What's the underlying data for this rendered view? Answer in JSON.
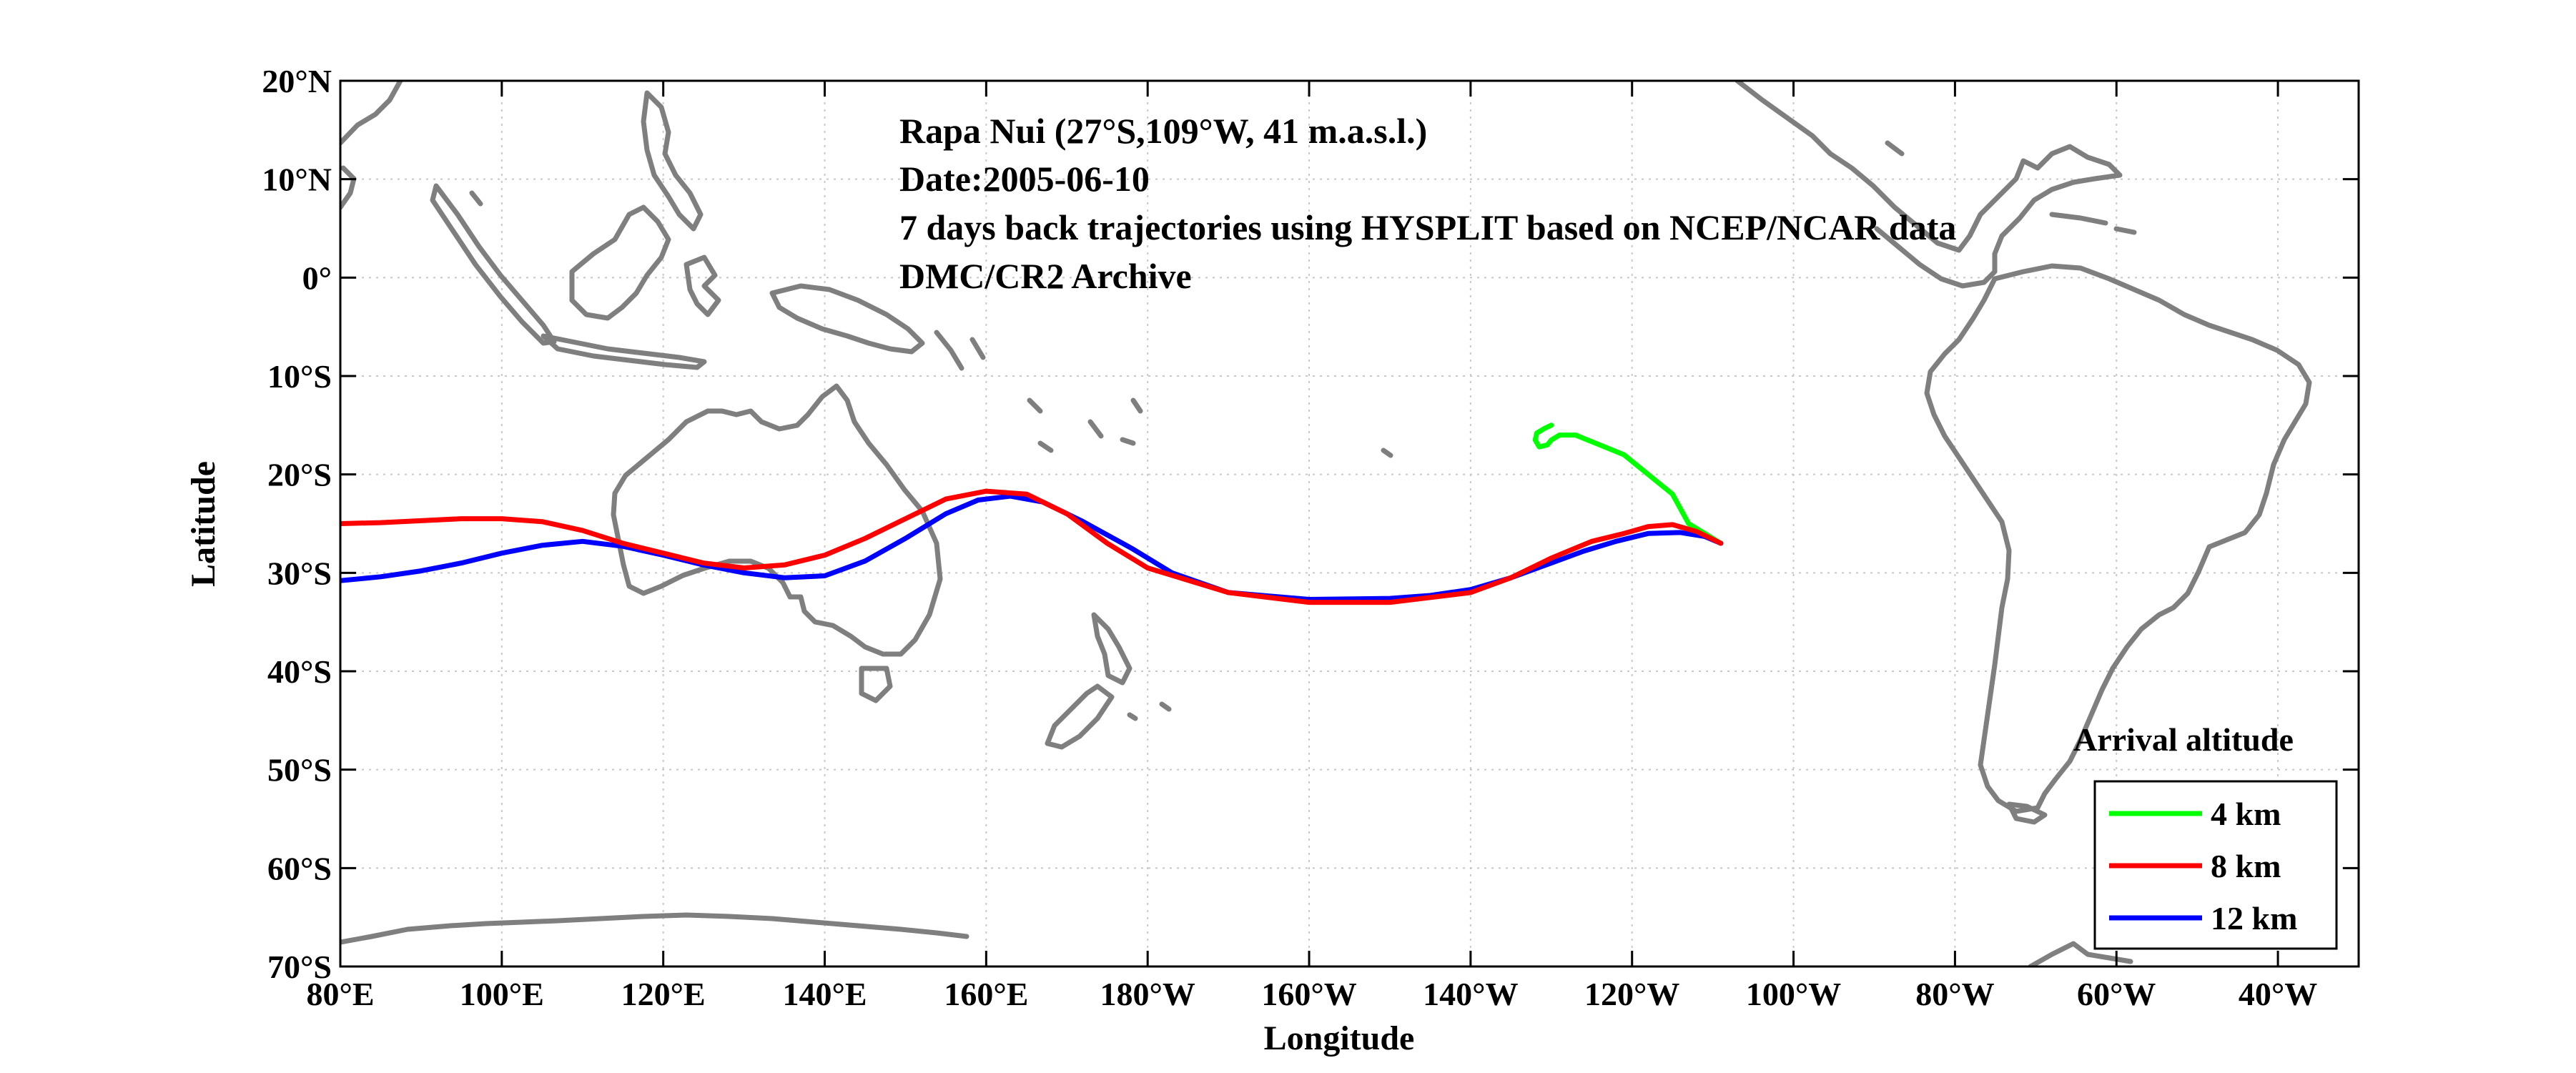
{
  "chart_data": {
    "type": "line",
    "title": "",
    "xlabel": "Longitude",
    "ylabel": "Latitude",
    "xlim": [
      80,
      330
    ],
    "ylim": [
      -70,
      20
    ],
    "grid": true,
    "legend_position": "bottom-right",
    "legend_title": "Arrival altitude",
    "annotations": [
      "Rapa Nui (27°S,109°W, 41 m.a.s.l.)",
      "Date:2005-06-10",
      "7 days back trajectories using HYSPLIT based on NCEP/NCAR data",
      "DMC/CR2 Archive"
    ],
    "x_ticks": [
      {
        "value": 80,
        "label": "80°E"
      },
      {
        "value": 100,
        "label": "100°E"
      },
      {
        "value": 120,
        "label": "120°E"
      },
      {
        "value": 140,
        "label": "140°E"
      },
      {
        "value": 160,
        "label": "160°E"
      },
      {
        "value": 180,
        "label": "180°W"
      },
      {
        "value": 200,
        "label": "160°W"
      },
      {
        "value": 220,
        "label": "140°W"
      },
      {
        "value": 240,
        "label": "120°W"
      },
      {
        "value": 260,
        "label": "100°W"
      },
      {
        "value": 280,
        "label": "80°W"
      },
      {
        "value": 300,
        "label": "60°W"
      },
      {
        "value": 320,
        "label": "40°W"
      }
    ],
    "y_ticks": [
      {
        "value": 20,
        "label": "20°N"
      },
      {
        "value": 10,
        "label": "10°N"
      },
      {
        "value": 0,
        "label": "0°"
      },
      {
        "value": -10,
        "label": "10°S"
      },
      {
        "value": -20,
        "label": "20°S"
      },
      {
        "value": -30,
        "label": "30°S"
      },
      {
        "value": -40,
        "label": "40°S"
      },
      {
        "value": -50,
        "label": "50°S"
      },
      {
        "value": -60,
        "label": "60°S"
      },
      {
        "value": -70,
        "label": "70°S"
      }
    ],
    "series": [
      {
        "name": "4 km",
        "color": "#00ff00",
        "points": [
          [
            251,
            -27
          ],
          [
            247,
            -25
          ],
          [
            245,
            -22
          ],
          [
            242,
            -20
          ],
          [
            239,
            -18
          ],
          [
            236,
            -17
          ],
          [
            233,
            -16
          ],
          [
            231,
            -16
          ],
          [
            230,
            -16.5
          ],
          [
            229.5,
            -17
          ],
          [
            228.5,
            -17.2
          ],
          [
            228,
            -16.5
          ],
          [
            228.2,
            -15.8
          ],
          [
            229.2,
            -15.3
          ],
          [
            230,
            -15
          ]
        ]
      },
      {
        "name": "8 km",
        "color": "#ff0000",
        "points": [
          [
            251,
            -27
          ],
          [
            248,
            -25.8
          ],
          [
            245,
            -25.1
          ],
          [
            242,
            -25.3
          ],
          [
            239,
            -26
          ],
          [
            235,
            -26.8
          ],
          [
            230,
            -28.5
          ],
          [
            225,
            -30.5
          ],
          [
            220,
            -32
          ],
          [
            210,
            -33
          ],
          [
            200,
            -33
          ],
          [
            190,
            -32
          ],
          [
            180,
            -29.5
          ],
          [
            175,
            -27
          ],
          [
            170,
            -24
          ],
          [
            165,
            -22
          ],
          [
            160,
            -21.7
          ],
          [
            155,
            -22.5
          ],
          [
            150,
            -24.5
          ],
          [
            145,
            -26.5
          ],
          [
            140,
            -28.2
          ],
          [
            135,
            -29.2
          ],
          [
            130,
            -29.5
          ],
          [
            125,
            -29
          ],
          [
            120,
            -28
          ],
          [
            115,
            -27
          ],
          [
            110,
            -25.7
          ],
          [
            105,
            -24.8
          ],
          [
            100,
            -24.5
          ],
          [
            95,
            -24.5
          ],
          [
            90,
            -24.7
          ],
          [
            85,
            -24.9
          ],
          [
            80,
            -25
          ]
        ]
      },
      {
        "name": "12 km",
        "color": "#0000ff",
        "points": [
          [
            251,
            -27
          ],
          [
            249,
            -26.3
          ],
          [
            246,
            -25.9
          ],
          [
            242,
            -26
          ],
          [
            238,
            -26.8
          ],
          [
            234,
            -27.8
          ],
          [
            230,
            -29
          ],
          [
            225,
            -30.5
          ],
          [
            220,
            -31.7
          ],
          [
            215,
            -32.3
          ],
          [
            210,
            -32.6
          ],
          [
            200,
            -32.7
          ],
          [
            190,
            -32
          ],
          [
            183,
            -30
          ],
          [
            178,
            -27.5
          ],
          [
            172,
            -24.8
          ],
          [
            167,
            -22.8
          ],
          [
            163,
            -22.2
          ],
          [
            159,
            -22.6
          ],
          [
            155,
            -24
          ],
          [
            150,
            -26.5
          ],
          [
            145,
            -28.8
          ],
          [
            140,
            -30.3
          ],
          [
            135,
            -30.5
          ],
          [
            130,
            -30
          ],
          [
            125,
            -29.2
          ],
          [
            120,
            -28.2
          ],
          [
            115,
            -27.3
          ],
          [
            110,
            -26.8
          ],
          [
            105,
            -27.2
          ],
          [
            100,
            -28
          ],
          [
            95,
            -29
          ],
          [
            90,
            -29.8
          ],
          [
            85,
            -30.4
          ],
          [
            80,
            -30.8
          ]
        ]
      }
    ]
  }
}
